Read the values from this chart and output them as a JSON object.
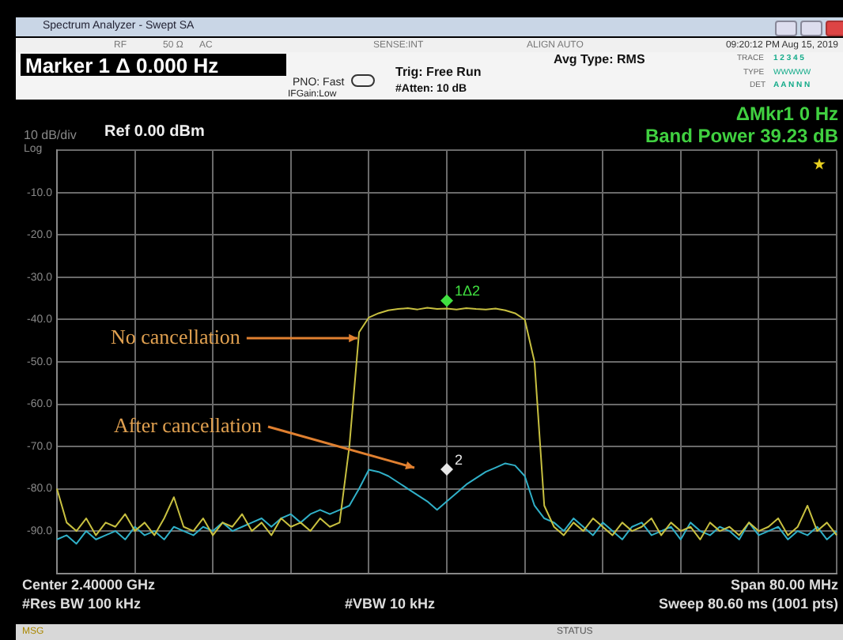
{
  "chart_data": {
    "type": "line",
    "title": "Marker 1 Δ 0.000 Hz",
    "annotations": [
      "Spectrum Analyzer - Swept SA",
      "RF",
      "50 Ω",
      "AC",
      "SENSE:INT",
      "ALIGN AUTO",
      "09:20:12 PM Aug 15, 2019",
      "PNO: Fast",
      "IFGain:Low",
      "Trig: Free Run",
      "#Atten: 10 dB",
      "Avg Type: RMS",
      "TRACE",
      "1 2 3 4 5",
      "TYPE",
      "WWWWW",
      "DET",
      "A A N N N",
      "ΔMkr1 0 Hz",
      "Band Power 39.23 dB",
      "10 dB/div",
      "Log",
      "Ref 0.00 dBm",
      "Center 2.40000 GHz",
      "#Res BW 100 kHz",
      "#VBW 10 kHz",
      "Span 80.00 MHz",
      "Sweep  80.60 ms (1001 pts)",
      "MSG",
      "STATUS"
    ],
    "categories": [
      null,
      null,
      null,
      null,
      null,
      null,
      null,
      null,
      null,
      null,
      null,
      null,
      null,
      null,
      null,
      null,
      null,
      null,
      null,
      null,
      null,
      null,
      null,
      null,
      null,
      null,
      null,
      null,
      null,
      null,
      null,
      null,
      null,
      null,
      null,
      null,
      null,
      null,
      null,
      null,
      null,
      null,
      null,
      null,
      null,
      null,
      null,
      null,
      null,
      null,
      null,
      null,
      null,
      null,
      null,
      null,
      null,
      null,
      null,
      null,
      null,
      null,
      null,
      null,
      null,
      null,
      null,
      null,
      null,
      null,
      null,
      null,
      null,
      null,
      null,
      null,
      null,
      null,
      null,
      null,
      null
    ],
    "series": [
      {
        "name": "No cancellation",
        "color": "#c8c040",
        "values": [
          -80,
          -88,
          -90,
          -87,
          -91,
          -88,
          -89,
          -86,
          -90,
          -88,
          -91,
          -87,
          -82,
          -89,
          -90,
          -87,
          -91,
          -88,
          -89,
          -86,
          -90,
          -88,
          -91,
          -87,
          -89,
          -88,
          -90,
          -87,
          -89,
          -88,
          -70,
          -43,
          -39.5,
          -38.5,
          -37.8,
          -37.5,
          -37.3,
          -37.6,
          -37.2,
          -37.5,
          -37.4,
          -37.6,
          -37.3,
          -37.5,
          -37.6,
          -37.4,
          -37.8,
          -38.5,
          -40,
          -50,
          -84,
          -89,
          -91,
          -88,
          -90,
          -87,
          -89,
          -91,
          -88,
          -90,
          -89,
          -87,
          -91,
          -88,
          -90,
          -89,
          -92,
          -88,
          -90,
          -89,
          -91,
          -88,
          -90,
          -89,
          -87,
          -91,
          -89,
          -84,
          -90,
          -88,
          -91
        ]
      },
      {
        "name": "After cancellation",
        "color": "#30b0c8",
        "values": [
          -92,
          -91,
          -93,
          -90,
          -92,
          -91,
          -90,
          -92,
          -89,
          -91,
          -90,
          -92,
          -89,
          -90,
          -91,
          -89,
          -90,
          -88,
          -90,
          -89,
          -88,
          -87,
          -89,
          -87,
          -86,
          -88,
          -86,
          -85,
          -86,
          -85,
          -84,
          -80,
          -75.5,
          -76,
          -77,
          -78.5,
          -80,
          -81.5,
          -83,
          -85,
          -83,
          -81,
          -79,
          -77.5,
          -76,
          -75,
          -74,
          -74.5,
          -77,
          -84,
          -87,
          -88,
          -90,
          -87,
          -89,
          -91,
          -88,
          -90,
          -92,
          -89,
          -88,
          -91,
          -90,
          -89,
          -92,
          -88,
          -90,
          -91,
          -89,
          -90,
          -92,
          -88,
          -91,
          -90,
          -89,
          -92,
          -90,
          -91,
          -89,
          -92,
          -90
        ]
      },
      {
        "name": "1Δ2",
        "type": "scatter",
        "marker": "diamond",
        "color": "#40e040",
        "values": [
          null,
          null,
          null,
          null,
          null,
          null,
          null,
          null,
          null,
          null,
          null,
          null,
          null,
          null,
          null,
          null,
          null,
          null,
          null,
          null,
          null,
          null,
          null,
          null,
          null,
          null,
          null,
          null,
          null,
          null,
          null,
          null,
          null,
          null,
          null,
          null,
          null,
          null,
          null,
          null,
          -35.5,
          null,
          null,
          null,
          null,
          null,
          null,
          null,
          null,
          null,
          null,
          null,
          null,
          null,
          null,
          null,
          null,
          null,
          null,
          null,
          null,
          null,
          null,
          null,
          null,
          null,
          null,
          null,
          null,
          null,
          null,
          null,
          null,
          null,
          null,
          null,
          null,
          null,
          null,
          null,
          null
        ]
      },
      {
        "name": "2",
        "type": "scatter",
        "marker": "diamond",
        "color": "#e8e8e8",
        "values": [
          null,
          null,
          null,
          null,
          null,
          null,
          null,
          null,
          null,
          null,
          null,
          null,
          null,
          null,
          null,
          null,
          null,
          null,
          null,
          null,
          null,
          null,
          null,
          null,
          null,
          null,
          null,
          null,
          null,
          null,
          null,
          null,
          null,
          null,
          null,
          null,
          null,
          null,
          null,
          null,
          -75.4,
          null,
          null,
          null,
          null,
          null,
          null,
          null,
          null,
          null,
          null,
          null,
          null,
          null,
          null,
          null,
          null,
          null,
          null,
          null,
          null,
          null,
          null,
          null,
          null,
          null,
          null,
          null,
          null,
          null,
          null,
          null,
          null,
          null,
          null,
          null,
          null,
          null,
          null,
          null,
          null
        ]
      }
    ],
    "ylim": [
      -100,
      0
    ],
    "yticks": [
      {
        "value": 0,
        "label": null
      },
      {
        "value": -10,
        "label": "-10.0"
      },
      {
        "value": -20,
        "label": "-20.0"
      },
      {
        "value": -30,
        "label": "-30.0"
      },
      {
        "value": -40,
        "label": "-40.0"
      },
      {
        "value": -50,
        "label": "-50.0"
      },
      {
        "value": -60,
        "label": "-60.0"
      },
      {
        "value": -70,
        "label": "-70.0"
      },
      {
        "value": -80,
        "label": "-80.0"
      },
      {
        "value": -90,
        "label": "-90.0"
      },
      {
        "value": -100,
        "label": null
      }
    ],
    "grid": true,
    "legend": false,
    "tick_labels": "y",
    "marker": "none"
  }
}
